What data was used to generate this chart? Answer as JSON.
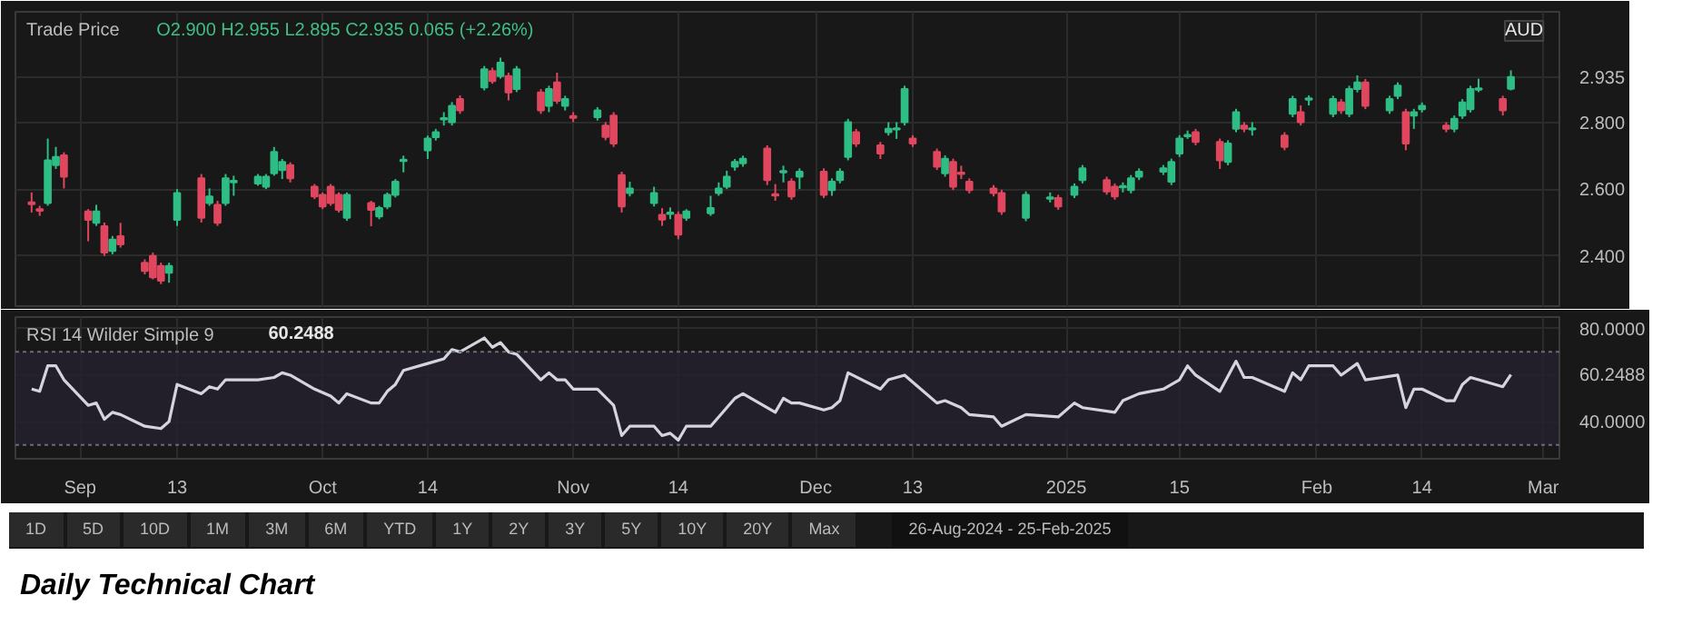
{
  "chart_data": [
    {
      "type": "candlestick",
      "title": "Trade Price",
      "grid": true,
      "tick_labels": "y",
      "annotations": [
        "O2.900 H2.955 L2.895 C2.935 0.065 (+2.26%)",
        "AUD"
      ],
      "xlim": [
        "2024-08-24",
        "2025-03-03"
      ],
      "xticks": [
        {
          "value": "2024-09-01",
          "label": null
        },
        {
          "value": "2024-09-13",
          "label": null
        },
        {
          "value": "2024-10-01",
          "label": null
        },
        {
          "value": "2024-10-14",
          "label": null
        },
        {
          "value": "2024-11-01",
          "label": null
        },
        {
          "value": "2024-11-14",
          "label": null
        },
        {
          "value": "2024-12-01",
          "label": null
        },
        {
          "value": "2024-12-13",
          "label": null
        },
        {
          "value": "2025-01-01",
          "label": null
        },
        {
          "value": "2025-01-15",
          "label": null
        },
        {
          "value": "2025-02-01",
          "label": null
        },
        {
          "value": "2025-02-14",
          "label": null
        },
        {
          "value": "2025-03-01",
          "label": null
        }
      ],
      "ylim": [
        2.25,
        3.13
      ],
      "yticks": [
        {
          "value": 2.4,
          "label": "2.400"
        },
        {
          "value": 2.6,
          "label": "2.600"
        },
        {
          "value": 2.8,
          "label": "2.800"
        },
        {
          "value": 2.935,
          "label": "2.935"
        }
      ],
      "x": [
        "2024-08-26",
        "2024-08-27",
        "2024-08-28",
        "2024-08-29",
        "2024-08-30",
        "2024-09-02",
        "2024-09-03",
        "2024-09-04",
        "2024-09-05",
        "2024-09-06",
        "2024-09-09",
        "2024-09-10",
        "2024-09-11",
        "2024-09-12",
        "2024-09-13",
        "2024-09-16",
        "2024-09-17",
        "2024-09-18",
        "2024-09-19",
        "2024-09-20",
        "2024-09-23",
        "2024-09-24",
        "2024-09-25",
        "2024-09-26",
        "2024-09-27",
        "2024-09-30",
        "2024-10-01",
        "2024-10-02",
        "2024-10-03",
        "2024-10-04",
        "2024-10-07",
        "2024-10-08",
        "2024-10-09",
        "2024-10-10",
        "2024-10-11",
        "2024-10-14",
        "2024-10-15",
        "2024-10-16",
        "2024-10-17",
        "2024-10-18",
        "2024-10-21",
        "2024-10-22",
        "2024-10-23",
        "2024-10-24",
        "2024-10-25",
        "2024-10-28",
        "2024-10-29",
        "2024-10-30",
        "2024-10-31",
        "2024-11-01",
        "2024-11-04",
        "2024-11-05",
        "2024-11-06",
        "2024-11-07",
        "2024-11-08",
        "2024-11-11",
        "2024-11-12",
        "2024-11-13",
        "2024-11-14",
        "2024-11-15",
        "2024-11-18",
        "2024-11-19",
        "2024-11-20",
        "2024-11-21",
        "2024-11-22",
        "2024-11-25",
        "2024-11-26",
        "2024-11-27",
        "2024-11-28",
        "2024-11-29",
        "2024-12-02",
        "2024-12-03",
        "2024-12-04",
        "2024-12-05",
        "2024-12-06",
        "2024-12-09",
        "2024-12-10",
        "2024-12-11",
        "2024-12-12",
        "2024-12-13",
        "2024-12-16",
        "2024-12-17",
        "2024-12-18",
        "2024-12-19",
        "2024-12-20",
        "2024-12-23",
        "2024-12-24",
        "2024-12-27",
        "2024-12-30",
        "2024-12-31",
        "2025-01-02",
        "2025-01-03",
        "2025-01-06",
        "2025-01-07",
        "2025-01-08",
        "2025-01-09",
        "2025-01-10",
        "2025-01-13",
        "2025-01-14",
        "2025-01-15",
        "2025-01-16",
        "2025-01-17",
        "2025-01-20",
        "2025-01-21",
        "2025-01-22",
        "2025-01-23",
        "2025-01-24",
        "2025-01-28",
        "2025-01-29",
        "2025-01-30",
        "2025-01-31",
        "2025-02-03",
        "2025-02-04",
        "2025-02-05",
        "2025-02-06",
        "2025-02-07",
        "2025-02-10",
        "2025-02-11",
        "2025-02-12",
        "2025-02-13",
        "2025-02-14",
        "2025-02-17",
        "2025-02-18",
        "2025-02-19",
        "2025-02-20",
        "2025-02-21",
        "2025-02-24",
        "2025-02-25"
      ],
      "ohlc": [
        [
          2.56,
          2.59,
          2.53,
          2.555
        ],
        [
          2.54,
          2.55,
          2.52,
          2.535
        ],
        [
          2.558,
          2.751,
          2.55,
          2.686
        ],
        [
          2.672,
          2.726,
          2.66,
          2.696
        ],
        [
          2.701,
          2.71,
          2.602,
          2.637
        ],
        [
          2.533,
          2.54,
          2.444,
          2.508
        ],
        [
          2.499,
          2.553,
          2.49,
          2.533
        ],
        [
          2.489,
          2.5,
          2.4,
          2.41
        ],
        [
          2.415,
          2.46,
          2.405,
          2.449
        ],
        [
          2.459,
          2.499,
          2.425,
          2.435
        ],
        [
          2.38,
          2.39,
          2.345,
          2.355
        ],
        [
          2.4,
          2.41,
          2.33,
          2.336
        ],
        [
          2.37,
          2.38,
          2.316,
          2.326
        ],
        [
          2.35,
          2.38,
          2.32,
          2.37
        ],
        [
          2.508,
          2.6,
          2.49,
          2.588
        ],
        [
          2.632,
          2.645,
          2.5,
          2.514
        ],
        [
          2.558,
          2.602,
          2.55,
          2.578
        ],
        [
          2.553,
          2.565,
          2.49,
          2.499
        ],
        [
          2.558,
          2.645,
          2.55,
          2.632
        ],
        [
          2.62,
          2.64,
          2.58,
          2.625
        ],
        [
          2.617,
          2.645,
          2.61,
          2.637
        ],
        [
          2.607,
          2.645,
          2.6,
          2.637
        ],
        [
          2.647,
          2.726,
          2.64,
          2.711
        ],
        [
          2.657,
          2.69,
          2.63,
          2.681
        ],
        [
          2.672,
          2.68,
          2.62,
          2.632
        ],
        [
          2.607,
          2.615,
          2.57,
          2.578
        ],
        [
          2.583,
          2.59,
          2.54,
          2.548
        ],
        [
          2.607,
          2.615,
          2.55,
          2.558
        ],
        [
          2.583,
          2.59,
          2.53,
          2.538
        ],
        [
          2.514,
          2.59,
          2.505,
          2.583
        ],
        [
          2.558,
          2.565,
          2.489,
          2.538
        ],
        [
          2.518,
          2.55,
          2.51,
          2.543
        ],
        [
          2.548,
          2.59,
          2.54,
          2.583
        ],
        [
          2.583,
          2.63,
          2.575,
          2.622
        ],
        [
          2.684,
          2.7,
          2.65,
          2.688
        ],
        [
          2.716,
          2.76,
          2.69,
          2.751
        ],
        [
          2.755,
          2.78,
          2.745,
          2.77
        ],
        [
          2.808,
          2.83,
          2.79,
          2.812
        ],
        [
          2.8,
          2.86,
          2.79,
          2.849
        ],
        [
          2.869,
          2.88,
          2.825,
          2.835
        ],
        [
          2.904,
          2.968,
          2.895,
          2.958
        ],
        [
          2.953,
          2.963,
          2.915,
          2.923
        ],
        [
          2.938,
          2.993,
          2.93,
          2.978
        ],
        [
          2.938,
          2.948,
          2.865,
          2.889
        ],
        [
          2.899,
          2.968,
          2.89,
          2.958
        ],
        [
          2.889,
          2.899,
          2.825,
          2.835
        ],
        [
          2.849,
          2.909,
          2.83,
          2.899
        ],
        [
          2.919,
          2.948,
          2.855,
          2.864
        ],
        [
          2.849,
          2.879,
          2.835,
          2.869
        ],
        [
          2.818,
          2.83,
          2.8,
          2.813
        ],
        [
          2.815,
          2.845,
          2.805,
          2.835
        ],
        [
          2.79,
          2.8,
          2.746,
          2.756
        ],
        [
          2.82,
          2.83,
          2.726,
          2.736
        ],
        [
          2.642,
          2.652,
          2.53,
          2.548
        ],
        [
          2.588,
          2.622,
          2.578,
          2.602
        ],
        [
          2.558,
          2.607,
          2.548,
          2.588
        ],
        [
          2.523,
          2.543,
          2.49,
          2.509
        ],
        [
          2.526,
          2.545,
          2.51,
          2.53
        ],
        [
          2.523,
          2.533,
          2.45,
          2.464
        ],
        [
          2.514,
          2.54,
          2.505,
          2.533
        ],
        [
          2.528,
          2.58,
          2.52,
          2.543
        ],
        [
          2.588,
          2.62,
          2.58,
          2.602
        ],
        [
          2.607,
          2.655,
          2.6,
          2.637
        ],
        [
          2.667,
          2.69,
          2.655,
          2.681
        ],
        [
          2.677,
          2.7,
          2.667,
          2.691
        ],
        [
          2.721,
          2.731,
          2.612,
          2.627
        ],
        [
          2.585,
          2.615,
          2.565,
          2.581
        ],
        [
          2.65,
          2.67,
          2.62,
          2.654
        ],
        [
          2.622,
          2.632,
          2.568,
          2.578
        ],
        [
          2.637,
          2.662,
          2.6,
          2.652
        ],
        [
          2.652,
          2.662,
          2.573,
          2.583
        ],
        [
          2.597,
          2.632,
          2.58,
          2.622
        ],
        [
          2.627,
          2.662,
          2.617,
          2.652
        ],
        [
          2.696,
          2.81,
          2.686,
          2.8
        ],
        [
          2.77,
          2.78,
          2.726,
          2.736
        ],
        [
          2.731,
          2.741,
          2.69,
          2.706
        ],
        [
          2.77,
          2.8,
          2.76,
          2.78
        ],
        [
          2.778,
          2.8,
          2.75,
          2.782
        ],
        [
          2.8,
          2.909,
          2.79,
          2.899
        ],
        [
          2.751,
          2.761,
          2.726,
          2.736
        ],
        [
          2.711,
          2.721,
          2.657,
          2.667
        ],
        [
          2.647,
          2.701,
          2.637,
          2.691
        ],
        [
          2.681,
          2.691,
          2.597,
          2.607
        ],
        [
          2.649,
          2.67,
          2.63,
          2.645
        ],
        [
          2.622,
          2.632,
          2.587,
          2.597
        ],
        [
          2.602,
          2.612,
          2.578,
          2.588
        ],
        [
          2.588,
          2.598,
          2.523,
          2.533
        ],
        [
          2.514,
          2.593,
          2.504,
          2.583
        ],
        [
          2.571,
          2.59,
          2.56,
          2.575
        ],
        [
          2.573,
          2.583,
          2.538,
          2.548
        ],
        [
          2.583,
          2.617,
          2.573,
          2.607
        ],
        [
          2.627,
          2.672,
          2.617,
          2.662
        ],
        [
          2.627,
          2.637,
          2.583,
          2.593
        ],
        [
          2.607,
          2.617,
          2.568,
          2.578
        ],
        [
          2.605,
          2.62,
          2.59,
          2.609
        ],
        [
          2.597,
          2.642,
          2.587,
          2.632
        ],
        [
          2.637,
          2.662,
          2.627,
          2.652
        ],
        [
          2.652,
          2.672,
          2.642,
          2.662
        ],
        [
          2.622,
          2.691,
          2.612,
          2.681
        ],
        [
          2.706,
          2.761,
          2.696,
          2.751
        ],
        [
          2.758,
          2.775,
          2.75,
          2.762
        ],
        [
          2.77,
          2.78,
          2.731,
          2.741
        ],
        [
          2.741,
          2.751,
          2.66,
          2.686
        ],
        [
          2.681,
          2.746,
          2.671,
          2.736
        ],
        [
          2.78,
          2.84,
          2.77,
          2.83
        ],
        [
          2.79,
          2.8,
          2.77,
          2.78
        ],
        [
          2.778,
          2.8,
          2.76,
          2.782
        ],
        [
          2.76,
          2.77,
          2.716,
          2.726
        ],
        [
          2.825,
          2.879,
          2.815,
          2.869
        ],
        [
          2.83,
          2.85,
          2.79,
          2.8
        ],
        [
          2.867,
          2.88,
          2.85,
          2.871
        ],
        [
          2.825,
          2.879,
          2.815,
          2.869
        ],
        [
          2.859,
          2.869,
          2.825,
          2.835
        ],
        [
          2.825,
          2.909,
          2.815,
          2.899
        ],
        [
          2.899,
          2.94,
          2.889,
          2.919
        ],
        [
          2.919,
          2.929,
          2.839,
          2.849
        ],
        [
          2.835,
          2.879,
          2.825,
          2.869
        ],
        [
          2.879,
          2.919,
          2.869,
          2.909
        ],
        [
          2.83,
          2.84,
          2.716,
          2.736
        ],
        [
          2.82,
          2.84,
          2.78,
          2.83
        ],
        [
          2.839,
          2.859,
          2.829,
          2.849
        ],
        [
          2.79,
          2.8,
          2.77,
          2.78
        ],
        [
          2.78,
          2.82,
          2.77,
          2.81
        ],
        [
          2.82,
          2.869,
          2.81,
          2.859
        ],
        [
          2.839,
          2.909,
          2.829,
          2.899
        ],
        [
          2.897,
          2.93,
          2.89,
          2.901
        ],
        [
          2.869,
          2.879,
          2.82,
          2.835
        ],
        [
          2.9,
          2.955,
          2.895,
          2.935
        ]
      ],
      "colors": [
        "#e0475f",
        "#e0475f",
        "#2ebd85",
        "#2ebd85",
        "#e0475f",
        "#e0475f",
        "#2ebd85",
        "#e0475f",
        "#2ebd85",
        "#e0475f",
        "#e0475f",
        "#e0475f",
        "#e0475f",
        "#2ebd85",
        "#2ebd85",
        "#e0475f",
        "#2ebd85",
        "#e0475f",
        "#2ebd85",
        "#2ebd85",
        "#2ebd85",
        "#2ebd85",
        "#2ebd85",
        "#2ebd85",
        "#e0475f",
        "#e0475f",
        "#e0475f",
        "#e0475f",
        "#e0475f",
        "#2ebd85",
        "#e0475f",
        "#2ebd85",
        "#2ebd85",
        "#2ebd85",
        "#2ebd85",
        "#2ebd85",
        "#2ebd85",
        "#2ebd85",
        "#2ebd85",
        "#e0475f",
        "#2ebd85",
        "#e0475f",
        "#2ebd85",
        "#e0475f",
        "#2ebd85",
        "#e0475f",
        "#2ebd85",
        "#e0475f",
        "#2ebd85",
        "#e0475f",
        "#2ebd85",
        "#e0475f",
        "#e0475f",
        "#e0475f",
        "#2ebd85",
        "#2ebd85",
        "#e0475f",
        "#2ebd85",
        "#e0475f",
        "#2ebd85",
        "#2ebd85",
        "#2ebd85",
        "#2ebd85",
        "#2ebd85",
        "#2ebd85",
        "#e0475f",
        "#e0475f",
        "#2ebd85",
        "#e0475f",
        "#2ebd85",
        "#e0475f",
        "#2ebd85",
        "#2ebd85",
        "#2ebd85",
        "#e0475f",
        "#e0475f",
        "#2ebd85",
        "#2ebd85",
        "#2ebd85",
        "#e0475f",
        "#e0475f",
        "#2ebd85",
        "#e0475f",
        "#e0475f",
        "#e0475f",
        "#e0475f",
        "#e0475f",
        "#2ebd85",
        "#2ebd85",
        "#e0475f",
        "#2ebd85",
        "#2ebd85",
        "#e0475f",
        "#e0475f",
        "#2ebd85",
        "#2ebd85",
        "#2ebd85",
        "#2ebd85",
        "#2ebd85",
        "#2ebd85",
        "#2ebd85",
        "#e0475f",
        "#e0475f",
        "#2ebd85",
        "#2ebd85",
        "#e0475f",
        "#2ebd85",
        "#e0475f",
        "#2ebd85",
        "#e0475f",
        "#2ebd85",
        "#2ebd85",
        "#e0475f",
        "#2ebd85",
        "#2ebd85",
        "#e0475f",
        "#2ebd85",
        "#2ebd85",
        "#e0475f",
        "#2ebd85",
        "#2ebd85",
        "#e0475f",
        "#2ebd85",
        "#2ebd85",
        "#2ebd85",
        "#2ebd85",
        "#e0475f",
        "#2ebd85"
      ]
    },
    {
      "type": "line",
      "title": "RSI 14 Wilder Simple 9",
      "grid": true,
      "annotations": [
        "60.2488",
        "1D",
        "5D",
        "10D",
        "1M",
        "3M",
        "6M",
        "YTD",
        "1Y",
        "2Y",
        "3Y",
        "5Y",
        "10Y",
        "20Y",
        "Max",
        "26-Aug-2024 - 25-Feb-2025",
        "Daily Technical Chart"
      ],
      "xlim": [
        "2024-08-24",
        "2025-03-03"
      ],
      "xticks": [
        {
          "value": "2024-09-01",
          "label": "Sep"
        },
        {
          "value": "2024-09-13",
          "label": "13"
        },
        {
          "value": "2024-10-01",
          "label": "Oct"
        },
        {
          "value": "2024-10-14",
          "label": "14"
        },
        {
          "value": "2024-11-01",
          "label": "Nov"
        },
        {
          "value": "2024-11-14",
          "label": "14"
        },
        {
          "value": "2024-12-01",
          "label": "Dec"
        },
        {
          "value": "2024-12-13",
          "label": "13"
        },
        {
          "value": "2025-01-01",
          "label": "2025"
        },
        {
          "value": "2025-01-15",
          "label": "15"
        },
        {
          "value": "2025-02-01",
          "label": "Feb"
        },
        {
          "value": "2025-02-14",
          "label": "14"
        },
        {
          "value": "2025-03-01",
          "label": "Mar"
        }
      ],
      "ylim": [
        24,
        85
      ],
      "yticks": [
        {
          "value": 40,
          "label": "40.0000"
        },
        {
          "value": 60.2488,
          "label": "60.2488"
        },
        {
          "value": 80,
          "label": "80.0000"
        }
      ],
      "ref_lines": [
        {
          "axis": "y",
          "value": 70,
          "color": "#6a6a78",
          "line_style": "dotted"
        },
        {
          "axis": "y",
          "value": 30,
          "color": "#6a6a78",
          "line_style": "dotted"
        }
      ],
      "bands": [
        {
          "axis": "y",
          "from": 30,
          "to": 70,
          "color": "#25212f"
        }
      ],
      "series": [
        {
          "color": "#d4d4dc",
          "x": [
            "2024-08-26",
            "2024-08-27",
            "2024-08-28",
            "2024-08-29",
            "2024-08-30",
            "2024-09-02",
            "2024-09-03",
            "2024-09-04",
            "2024-09-05",
            "2024-09-06",
            "2024-09-09",
            "2024-09-11",
            "2024-09-12",
            "2024-09-13",
            "2024-09-16",
            "2024-09-17",
            "2024-09-18",
            "2024-09-19",
            "2024-09-23",
            "2024-09-25",
            "2024-09-26",
            "2024-09-27",
            "2024-09-30",
            "2024-10-02",
            "2024-10-03",
            "2024-10-04",
            "2024-10-07",
            "2024-10-08",
            "2024-10-09",
            "2024-10-10",
            "2024-10-11",
            "2024-10-14",
            "2024-10-16",
            "2024-10-17",
            "2024-10-18",
            "2024-10-21",
            "2024-10-22",
            "2024-10-23",
            "2024-10-24",
            "2024-10-25",
            "2024-10-28",
            "2024-10-29",
            "2024-10-30",
            "2024-10-31",
            "2024-11-01",
            "2024-11-04",
            "2024-11-06",
            "2024-11-07",
            "2024-11-08",
            "2024-11-11",
            "2024-11-12",
            "2024-11-13",
            "2024-11-14",
            "2024-11-15",
            "2024-11-18",
            "2024-11-20",
            "2024-11-21",
            "2024-11-22",
            "2024-11-26",
            "2024-11-27",
            "2024-11-28",
            "2024-11-29",
            "2024-12-02",
            "2024-12-03",
            "2024-12-04",
            "2024-12-05",
            "2024-12-09",
            "2024-12-10",
            "2024-12-12",
            "2024-12-16",
            "2024-12-17",
            "2024-12-19",
            "2024-12-20",
            "2024-12-23",
            "2024-12-24",
            "2024-12-27",
            "2024-12-31",
            "2025-01-02",
            "2025-01-03",
            "2025-01-07",
            "2025-01-08",
            "2025-01-10",
            "2025-01-13",
            "2025-01-15",
            "2025-01-16",
            "2025-01-17",
            "2025-01-20",
            "2025-01-22",
            "2025-01-23",
            "2025-01-24",
            "2025-01-28",
            "2025-01-29",
            "2025-01-30",
            "2025-01-31",
            "2025-02-03",
            "2025-02-04",
            "2025-02-06",
            "2025-02-07",
            "2025-02-11",
            "2025-02-12",
            "2025-02-13",
            "2025-02-14",
            "2025-02-17",
            "2025-02-18",
            "2025-02-19",
            "2025-02-20",
            "2025-02-21",
            "2025-02-24",
            "2025-02-25"
          ],
          "values": [
            54,
            53,
            64,
            64,
            58,
            47,
            48,
            41,
            44,
            43,
            38,
            37,
            40,
            56,
            52,
            55,
            54,
            58,
            58,
            59,
            61,
            60,
            54,
            51,
            48,
            52,
            48,
            48,
            53,
            56,
            62,
            65,
            67,
            71,
            70,
            76,
            72,
            74,
            70,
            69,
            58,
            61,
            58,
            58,
            54,
            54,
            47,
            34,
            38,
            38,
            34,
            35,
            32,
            38,
            38,
            46,
            50,
            52,
            44,
            50,
            48,
            48,
            45,
            46,
            49,
            61,
            54,
            58,
            60,
            48,
            49,
            46,
            43,
            42,
            38,
            43,
            42,
            48,
            46,
            44,
            49,
            52,
            54,
            58,
            64,
            60,
            53,
            66,
            59,
            59,
            53,
            61,
            58,
            64,
            64,
            60,
            65,
            58,
            60,
            46,
            54,
            54,
            49,
            49,
            56,
            59,
            58,
            55,
            60.2488
          ]
        }
      ]
    }
  ]
}
